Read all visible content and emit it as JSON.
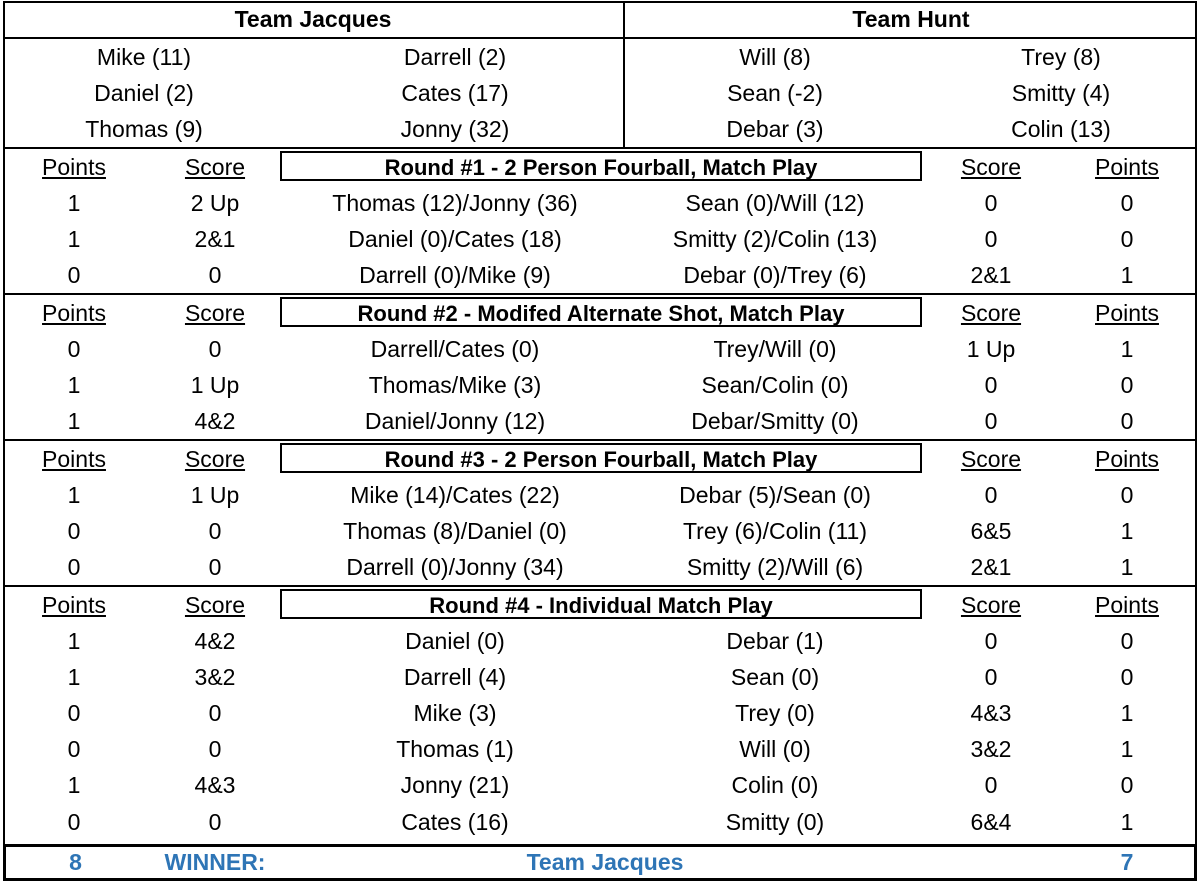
{
  "teams": {
    "left": {
      "name": "Team Jacques",
      "roster": [
        [
          "Mike (11)",
          "Darrell (2)"
        ],
        [
          "Daniel (2)",
          "Cates (17)"
        ],
        [
          "Thomas (9)",
          "Jonny (32)"
        ]
      ]
    },
    "right": {
      "name": "Team Hunt",
      "roster": [
        [
          "Will (8)",
          "Trey (8)"
        ],
        [
          "Sean (-2)",
          "Smitty (4)"
        ],
        [
          "Debar (3)",
          "Colin (13)"
        ]
      ]
    }
  },
  "labels": {
    "points": "Points",
    "score": "Score"
  },
  "rounds": [
    {
      "title": "Round #1 - 2 Person Fourball, Match Play",
      "matches": [
        {
          "lp": "1",
          "ls": "2 Up",
          "left": "Thomas (12)/Jonny (36)",
          "right": "Sean (0)/Will (12)",
          "rs": "0",
          "rp": "0"
        },
        {
          "lp": "1",
          "ls": "2&1",
          "left": "Daniel (0)/Cates (18)",
          "right": "Smitty (2)/Colin (13)",
          "rs": "0",
          "rp": "0"
        },
        {
          "lp": "0",
          "ls": "0",
          "left": "Darrell (0)/Mike (9)",
          "right": "Debar (0)/Trey (6)",
          "rs": "2&1",
          "rp": "1"
        }
      ]
    },
    {
      "title": "Round #2 - Modifed Alternate Shot, Match Play",
      "matches": [
        {
          "lp": "0",
          "ls": "0",
          "left": "Darrell/Cates (0)",
          "right": "Trey/Will (0)",
          "rs": "1 Up",
          "rp": "1"
        },
        {
          "lp": "1",
          "ls": "1 Up",
          "left": "Thomas/Mike (3)",
          "right": "Sean/Colin (0)",
          "rs": "0",
          "rp": "0"
        },
        {
          "lp": "1",
          "ls": "4&2",
          "left": "Daniel/Jonny (12)",
          "right": "Debar/Smitty (0)",
          "rs": "0",
          "rp": "0"
        }
      ]
    },
    {
      "title": "Round #3 - 2 Person Fourball, Match Play",
      "matches": [
        {
          "lp": "1",
          "ls": "1 Up",
          "left": "Mike (14)/Cates (22)",
          "right": "Debar (5)/Sean (0)",
          "rs": "0",
          "rp": "0"
        },
        {
          "lp": "0",
          "ls": "0",
          "left": "Thomas (8)/Daniel (0)",
          "right": "Trey (6)/Colin (11)",
          "rs": "6&5",
          "rp": "1"
        },
        {
          "lp": "0",
          "ls": "0",
          "left": "Darrell (0)/Jonny (34)",
          "right": "Smitty (2)/Will (6)",
          "rs": "2&1",
          "rp": "1"
        }
      ]
    },
    {
      "title": "Round #4 - Individual Match Play",
      "matches": [
        {
          "lp": "1",
          "ls": "4&2",
          "left": "Daniel (0)",
          "right": "Debar (1)",
          "rs": "0",
          "rp": "0"
        },
        {
          "lp": "1",
          "ls": "3&2",
          "left": "Darrell (4)",
          "right": "Sean (0)",
          "rs": "0",
          "rp": "0"
        },
        {
          "lp": "0",
          "ls": "0",
          "left": "Mike (3)",
          "right": "Trey (0)",
          "rs": "4&3",
          "rp": "1"
        },
        {
          "lp": "0",
          "ls": "0",
          "left": "Thomas (1)",
          "right": "Will (0)",
          "rs": "3&2",
          "rp": "1"
        },
        {
          "lp": "1",
          "ls": "4&3",
          "left": "Jonny (21)",
          "right": "Colin (0)",
          "rs": "0",
          "rp": "0"
        },
        {
          "lp": "0",
          "ls": "0",
          "left": "Cates (16)",
          "right": "Smitty (0)",
          "rs": "6&4",
          "rp": "1"
        }
      ]
    }
  ],
  "totals": {
    "left_points": "8",
    "winner_label": "WINNER:",
    "winner_team": "Team Jacques",
    "right_points": "7"
  },
  "colors": {
    "accent": "#2E75B6",
    "text": "#000000",
    "background": "#FFFFFF"
  }
}
